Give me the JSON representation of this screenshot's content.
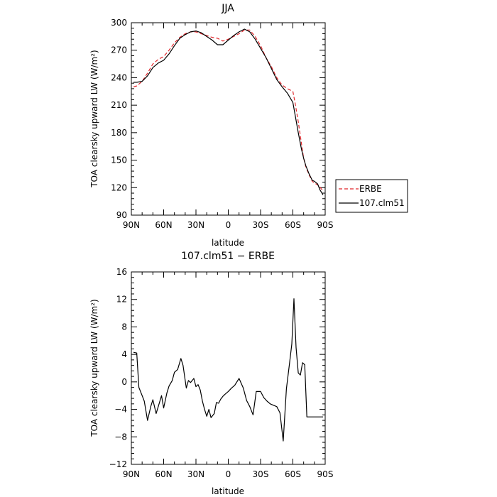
{
  "chart_data": [
    {
      "type": "line",
      "title": "JJA",
      "xlabel": "latitude",
      "ylabel": "TOA clearsky upward LW (W/m²)",
      "xlim": [
        -90,
        90
      ],
      "ylim": [
        90,
        300
      ],
      "x_tick_values": [
        -90,
        -60,
        -30,
        0,
        30,
        60,
        90
      ],
      "x_tick_labels": [
        "90N",
        "60N",
        "30N",
        "0",
        "30S",
        "60S",
        "90S"
      ],
      "y_tick_values": [
        90,
        120,
        150,
        180,
        210,
        240,
        270,
        300
      ],
      "y_tick_labels": [
        "90",
        "120",
        "150",
        "180",
        "210",
        "240",
        "270",
        "300"
      ],
      "legend": {
        "placement": "right",
        "entries": [
          "ERBE",
          "107.clm51"
        ]
      },
      "series": [
        {
          "name": "ERBE",
          "style": "dashed",
          "color": "#e0262b",
          "x": [
            -88,
            -85,
            -80,
            -75,
            -70,
            -65,
            -60,
            -55,
            -50,
            -45,
            -40,
            -35,
            -30,
            -25,
            -20,
            -15,
            -10,
            -5,
            0,
            5,
            10,
            15,
            20,
            25,
            30,
            35,
            40,
            45,
            50,
            55,
            60,
            62,
            65,
            68,
            70,
            72,
            75,
            78,
            80,
            83,
            85,
            88
          ],
          "y": [
            230,
            231,
            236,
            245,
            255,
            260,
            263,
            270,
            278,
            284,
            288,
            290,
            290,
            288,
            286,
            284,
            283,
            280,
            282,
            285,
            288,
            292,
            292,
            285,
            275,
            262,
            252,
            240,
            232,
            228,
            225,
            213,
            192,
            168,
            152,
            143,
            134,
            127,
            125,
            123,
            121,
            116
          ]
        },
        {
          "name": "107.clm51",
          "style": "solid",
          "color": "#000000",
          "x": [
            -88,
            -85,
            -80,
            -75,
            -70,
            -65,
            -60,
            -55,
            -50,
            -45,
            -40,
            -35,
            -30,
            -25,
            -20,
            -15,
            -10,
            -5,
            0,
            5,
            10,
            15,
            20,
            25,
            30,
            35,
            40,
            45,
            50,
            55,
            60,
            62,
            65,
            68,
            70,
            72,
            75,
            78,
            80,
            83,
            85,
            88
          ],
          "y": [
            235,
            235,
            236,
            242,
            251,
            256,
            259,
            266,
            275,
            283,
            287,
            290,
            291,
            289,
            285,
            281,
            276,
            276,
            281,
            286,
            290,
            293,
            290,
            282,
            272,
            262,
            250,
            238,
            230,
            223,
            213,
            200,
            180,
            162,
            152,
            144,
            135,
            128,
            127,
            124,
            118,
            112
          ]
        }
      ]
    },
    {
      "type": "line",
      "title": "107.clm51 − ERBE",
      "xlabel": "latitude",
      "ylabel": "TOA clearsky upward LW (W/m²)",
      "xlim": [
        -90,
        90
      ],
      "ylim": [
        -12,
        16
      ],
      "x_tick_values": [
        -90,
        -60,
        -30,
        0,
        30,
        60,
        90
      ],
      "x_tick_labels": [
        "90N",
        "60N",
        "30N",
        "0",
        "30S",
        "60S",
        "90S"
      ],
      "y_tick_values": [
        -12,
        -8,
        -4,
        0,
        4,
        8,
        12,
        16
      ],
      "y_tick_labels": [
        "−12",
        "−8",
        "−4",
        "0",
        "4",
        "8",
        "12",
        "16"
      ],
      "series": [
        {
          "style": "solid",
          "color": "#000000",
          "x": [
            -88,
            -85,
            -83,
            -80,
            -78,
            -75,
            -72,
            -70,
            -67,
            -65,
            -62,
            -60,
            -57,
            -55,
            -52,
            -50,
            -47,
            -44,
            -42,
            -39,
            -37,
            -35,
            -32,
            -30,
            -28,
            -26,
            -24,
            -22,
            -20,
            -18,
            -16,
            -13,
            -11,
            -9,
            -7,
            -5,
            -3,
            0,
            3,
            6,
            10,
            14,
            17,
            20,
            23,
            26,
            30,
            33,
            36,
            39,
            42,
            45,
            48,
            51,
            54,
            57,
            59,
            61,
            63,
            65,
            67,
            69,
            71,
            73,
            75,
            77,
            79,
            81,
            83,
            85,
            88
          ],
          "y": [
            4.3,
            4.2,
            -0.8,
            -2.0,
            -2.8,
            -5.6,
            -3.6,
            -2.6,
            -4.6,
            -3.6,
            -2.0,
            -3.8,
            -1.6,
            -0.6,
            0.2,
            1.4,
            1.8,
            3.4,
            2.4,
            -0.9,
            0.2,
            -0.1,
            0.5,
            -0.7,
            -0.4,
            -1.2,
            -2.8,
            -4.0,
            -5.0,
            -4.0,
            -5.2,
            -4.6,
            -3.0,
            -3.1,
            -2.5,
            -2.1,
            -1.8,
            -1.4,
            -0.9,
            -0.5,
            0.5,
            -0.9,
            -2.7,
            -3.6,
            -4.8,
            -1.4,
            -1.4,
            -2.3,
            -2.8,
            -3.2,
            -3.4,
            -3.6,
            -4.5,
            -8.6,
            -1.0,
            2.8,
            5.5,
            12.1,
            5.0,
            1.3,
            1.0,
            2.8,
            2.5,
            -5.1,
            -5.1,
            -5.1,
            -5.1,
            -5.1,
            -5.1,
            -5.1,
            -5.1
          ]
        }
      ]
    }
  ]
}
